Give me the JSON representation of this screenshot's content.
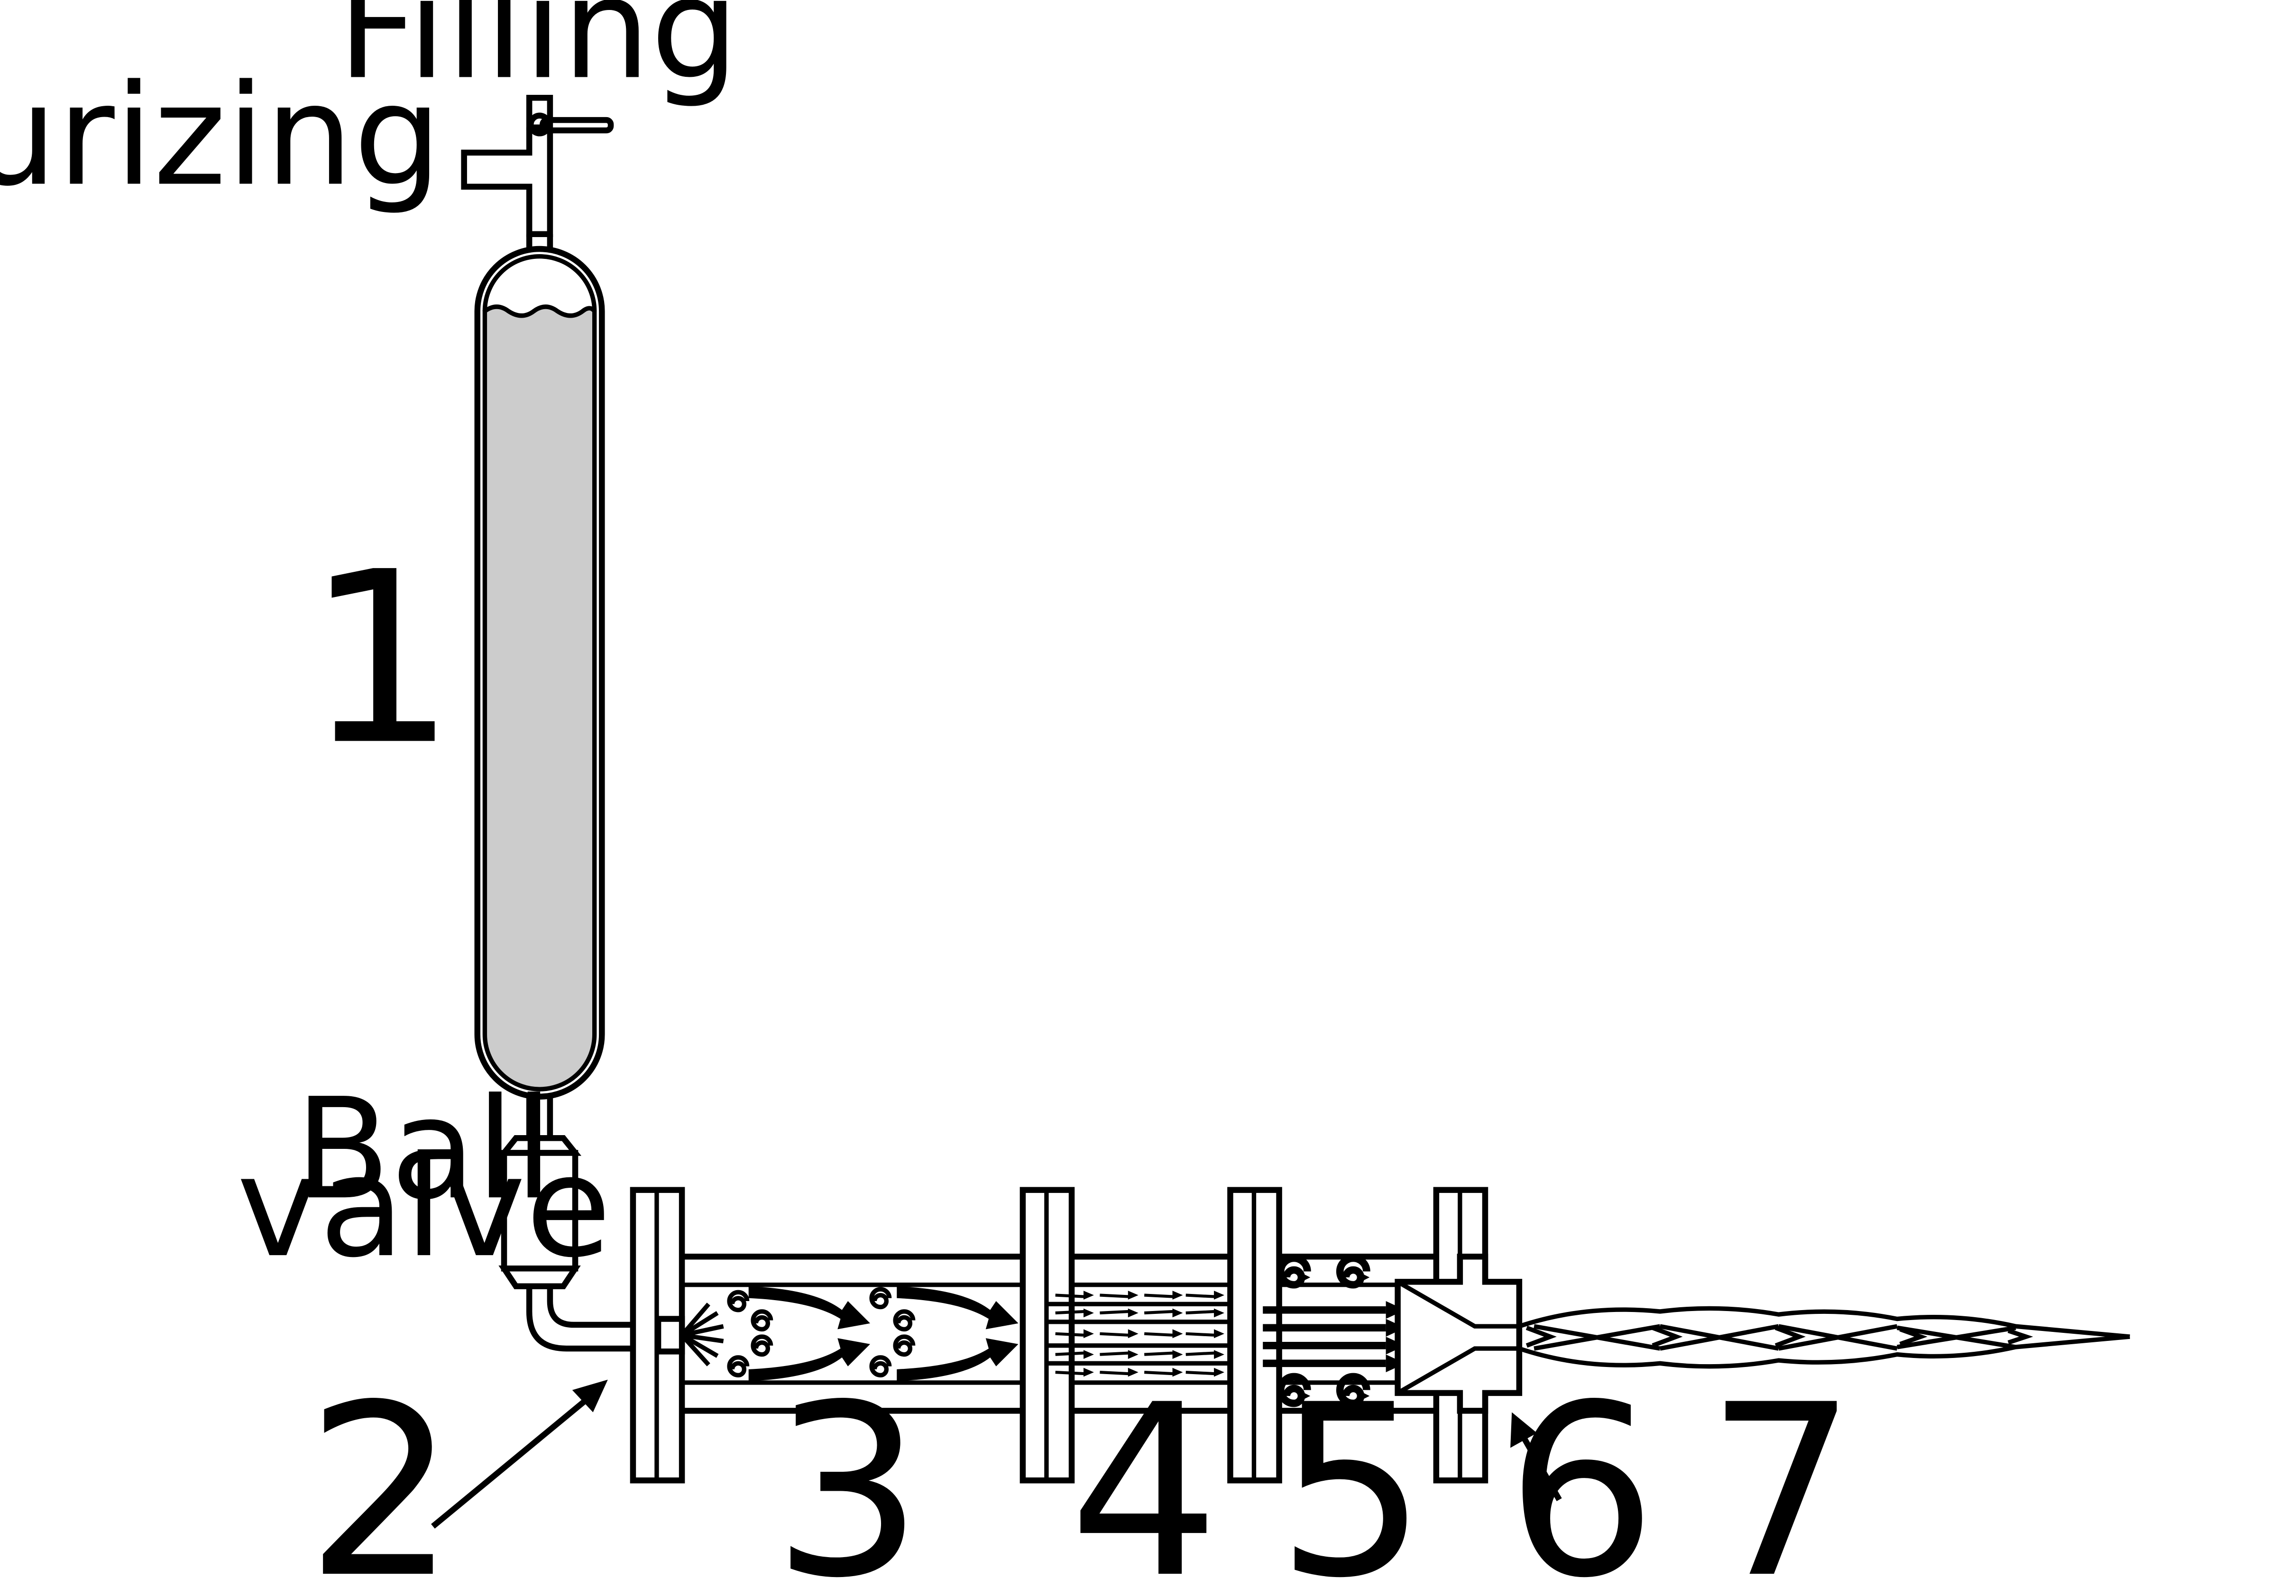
{
  "labels": {
    "filling": "Filling",
    "pressurizing": "Pressurizing",
    "ball_valve_line1": "Ball",
    "ball_valve_line2": "valve"
  },
  "numbers": {
    "n1": "1",
    "n2": "2",
    "n3": "3",
    "n4": "4",
    "n5": "5",
    "n6": "6",
    "n7": "7"
  },
  "colors": {
    "line": "#000000",
    "liquid": "#cccccc",
    "background": "#ffffff"
  }
}
